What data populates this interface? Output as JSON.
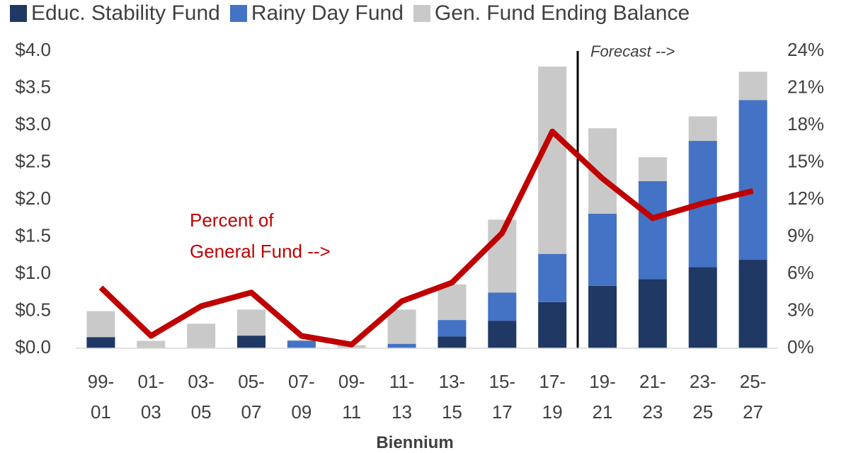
{
  "chart_data": {
    "type": "bar",
    "stacked": true,
    "x_label": "Biennium",
    "categories": [
      "99-01",
      "01-03",
      "03-05",
      "05-07",
      "07-09",
      "09-11",
      "11-13",
      "13-15",
      "15-17",
      "17-19",
      "19-21",
      "21-23",
      "23-25",
      "25-27"
    ],
    "series": [
      {
        "name": "Educ. Stability Fund",
        "color": "#1f3864",
        "values": [
          0.15,
          0,
          0,
          0.17,
          0,
          0,
          0,
          0.16,
          0.37,
          0.62,
          0.84,
          0.93,
          1.09,
          1.19
        ]
      },
      {
        "name": "Rainy Day Fund",
        "color": "#4472c4",
        "values": [
          0,
          0,
          0,
          0,
          0.1,
          0,
          0.06,
          0.22,
          0.38,
          0.65,
          0.97,
          1.32,
          1.7,
          2.15
        ]
      },
      {
        "name": "Gen. Fund Ending Balance",
        "color": "#c9c9c9",
        "values": [
          0.35,
          0.1,
          0.33,
          0.35,
          0.01,
          0.04,
          0.46,
          0.48,
          0.98,
          2.52,
          1.15,
          0.32,
          0.33,
          0.38
        ]
      }
    ],
    "line": {
      "color": "#c00000",
      "axis": "y2",
      "values": [
        4.9,
        1.0,
        3.4,
        4.5,
        1.0,
        0.3,
        3.8,
        5.3,
        9.3,
        17.5,
        13.7,
        10.5,
        11.7,
        12.7
      ]
    },
    "ylim": [
      0,
      4
    ],
    "yticks": [
      {
        "value": 0,
        "label": "$0.0"
      },
      {
        "value": 0.5,
        "label": "$0.5"
      },
      {
        "value": 1,
        "label": "$1.0"
      },
      {
        "value": 1.5,
        "label": "$1.5"
      },
      {
        "value": 2,
        "label": "$2.0"
      },
      {
        "value": 2.5,
        "label": "$2.5"
      },
      {
        "value": 3,
        "label": "$3.0"
      },
      {
        "value": 3.5,
        "label": "$3.5"
      },
      {
        "value": 4,
        "label": "$4.0"
      }
    ],
    "y2lim": [
      0,
      24
    ],
    "y2ticks": [
      {
        "value": 0,
        "label": "0%"
      },
      {
        "value": 3,
        "label": "3%"
      },
      {
        "value": 6,
        "label": "6%"
      },
      {
        "value": 9,
        "label": "9%"
      },
      {
        "value": 12,
        "label": "12%"
      },
      {
        "value": 15,
        "label": "15%"
      },
      {
        "value": 18,
        "label": "18%"
      },
      {
        "value": 21,
        "label": "21%"
      },
      {
        "value": 24,
        "label": "24%"
      }
    ],
    "annotations": [
      "Forecast -->",
      "Percent of",
      "General Fund -->"
    ],
    "legend": "top"
  }
}
